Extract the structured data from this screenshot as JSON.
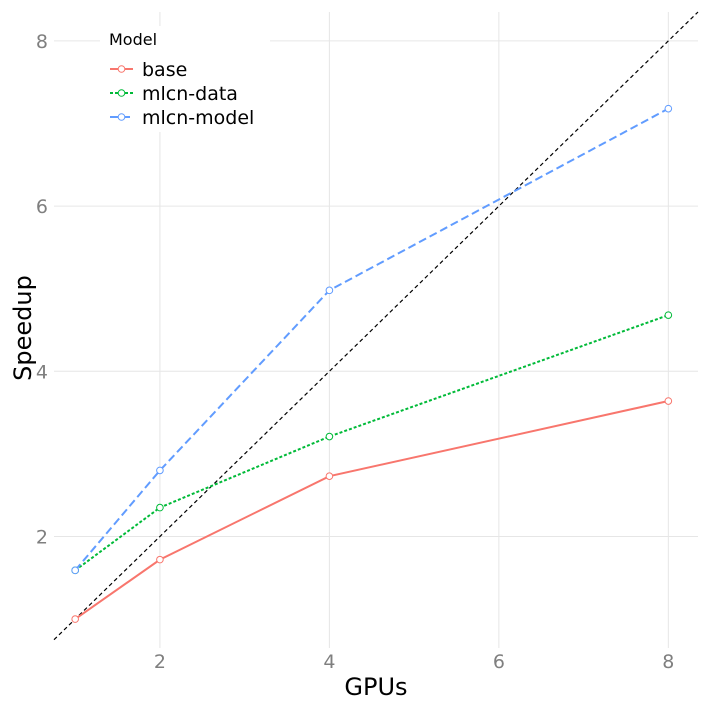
{
  "chart_data": {
    "type": "line",
    "xlabel": "GPUs",
    "ylabel": "Speedup",
    "xlim": [
      0.75,
      8.35
    ],
    "ylim": [
      0.65,
      8.35
    ],
    "x_ticks": [
      2,
      4,
      6,
      8
    ],
    "y_ticks": [
      2,
      4,
      6,
      8
    ],
    "grid": true,
    "legend": {
      "title": "Model",
      "position": "top-left"
    },
    "reference_line": {
      "slope": 1,
      "intercept": 0,
      "style": "dashed",
      "color": "#000000"
    },
    "series": [
      {
        "name": "base",
        "color": "#F8766D",
        "dash": "solid",
        "x": [
          1,
          2,
          4,
          8
        ],
        "y": [
          1.0,
          1.72,
          2.73,
          3.64
        ]
      },
      {
        "name": "mlcn-data",
        "color": "#00BA38",
        "dash": "dotted",
        "x": [
          1,
          2,
          4,
          8
        ],
        "y": [
          1.59,
          2.35,
          3.21,
          4.68
        ]
      },
      {
        "name": "mlcn-model",
        "color": "#619CFF",
        "dash": "dashed",
        "x": [
          1,
          2,
          4,
          8
        ],
        "y": [
          1.59,
          2.8,
          4.98,
          7.18
        ]
      }
    ]
  }
}
